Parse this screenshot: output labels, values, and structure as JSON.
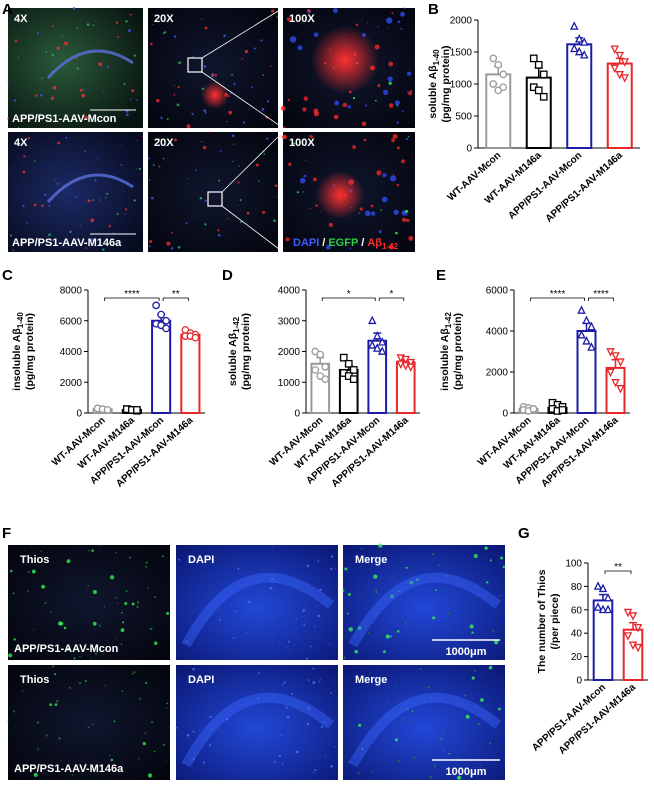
{
  "panel_a": {
    "label": "A",
    "rows": [
      {
        "mags": [
          "4X",
          "20X",
          "100X"
        ],
        "group": "APP/PS1-AAV-Mcon"
      },
      {
        "mags": [
          "4X",
          "20X",
          "100X"
        ],
        "group": "APP/PS1-AAV-M146a"
      }
    ],
    "legend": {
      "dapi": "DAPI",
      "sep1": "/",
      "egfp": "EGFP",
      "sep2": "/",
      "ab": "Aβ",
      "sub": "1-42"
    }
  },
  "panel_f": {
    "label": "F",
    "rows": [
      {
        "stains": [
          "Thios",
          "DAPI",
          "Merge"
        ],
        "group": "APP/PS1-AAV-Mcon",
        "scale": "1000μm"
      },
      {
        "stains": [
          "Thios",
          "DAPI",
          "Merge"
        ],
        "group": "APP/PS1-AAV-M146a",
        "scale": "1000μm"
      }
    ]
  },
  "chart_data": [
    {
      "type": "bar",
      "label": "B",
      "ylabel": {
        "text": "soluble Aβ",
        "sub": "1-40",
        "unit": "(pg/mg protein)"
      },
      "categories": [
        "WT-AAV-Mcon",
        "WT-AAV-M146a",
        "APP/PS1-AAV-Mcon",
        "APP/PS1-AAV-M146a"
      ],
      "values": [
        1150,
        1100,
        1620,
        1320
      ],
      "errors": [
        120,
        150,
        100,
        80
      ],
      "points": [
        [
          1400,
          1300,
          1150,
          1000,
          900,
          950
        ],
        [
          1400,
          1300,
          1150,
          950,
          900,
          800
        ],
        [
          1900,
          1700,
          1650,
          1550,
          1500,
          1450
        ],
        [
          1550,
          1450,
          1350,
          1250,
          1150,
          1100
        ]
      ],
      "colors": [
        "#9a9a9a",
        "#000000",
        "#1c1ca8",
        "#e8262a"
      ],
      "markers": [
        "circle",
        "square",
        "triangle",
        "triangle-down"
      ],
      "ylim": [
        0,
        2000
      ],
      "yticks": [
        0,
        500,
        1000,
        1500,
        2000
      ],
      "comparisons": []
    },
    {
      "type": "bar",
      "label": "C",
      "ylabel": {
        "text": "insoluble Aβ",
        "sub": "1-40",
        "unit": "(pg/mg protein)"
      },
      "categories": [
        "WT-AAV-Mcon",
        "WT-AAV-M146a",
        "APP/PS1-AAV-Mcon",
        "APP/PS1-AAV-M146a"
      ],
      "values": [
        250,
        200,
        6000,
        5100
      ],
      "errors": [
        50,
        50,
        400,
        150
      ],
      "points": [
        [
          300,
          250,
          200,
          300,
          250,
          200
        ],
        [
          250,
          200,
          150,
          250,
          200,
          200
        ],
        [
          7000,
          6400,
          6000,
          5800,
          5700,
          5500
        ],
        [
          5400,
          5200,
          5100,
          5000,
          5000,
          4900
        ]
      ],
      "colors": [
        "#9a9a9a",
        "#000000",
        "#1c1ca8",
        "#e8262a"
      ],
      "markers": [
        "circle",
        "square",
        "circle",
        "circle"
      ],
      "ylim": [
        0,
        8000
      ],
      "yticks": [
        0,
        2000,
        4000,
        6000,
        8000
      ],
      "comparisons": [
        {
          "groups": [
            "WT-AAV-Mcon",
            "APP/PS1-AAV-Mcon"
          ],
          "label": "****"
        },
        {
          "groups": [
            "APP/PS1-AAV-Mcon",
            "APP/PS1-AAV-M146a"
          ],
          "label": "**"
        }
      ]
    },
    {
      "type": "bar",
      "label": "D",
      "ylabel": {
        "text": "soluble Aβ",
        "sub": "1-42",
        "unit": "(pg/mg protein)"
      },
      "categories": [
        "WT-AAV-Mcon",
        "WT-AAV-M146a",
        "APP/PS1-AAV-Mcon",
        "APP/PS1-AAV-M146a"
      ],
      "values": [
        1600,
        1400,
        2350,
        1650
      ],
      "errors": [
        200,
        150,
        250,
        80
      ],
      "points": [
        [
          2000,
          1900,
          1500,
          1400,
          1200,
          1100
        ],
        [
          1800,
          1600,
          1400,
          1300,
          1200,
          1100
        ],
        [
          3000,
          2500,
          2300,
          2200,
          2100,
          2000
        ],
        [
          1800,
          1750,
          1650,
          1600,
          1550,
          1500
        ]
      ],
      "colors": [
        "#9a9a9a",
        "#000000",
        "#1c1ca8",
        "#e8262a"
      ],
      "markers": [
        "circle",
        "square",
        "triangle",
        "triangle-down"
      ],
      "ylim": [
        0,
        4000
      ],
      "yticks": [
        0,
        1000,
        2000,
        3000,
        4000
      ],
      "comparisons": [
        {
          "groups": [
            "WT-AAV-Mcon",
            "APP/PS1-AAV-Mcon"
          ],
          "label": "*"
        },
        {
          "groups": [
            "APP/PS1-AAV-Mcon",
            "APP/PS1-AAV-M146a"
          ],
          "label": "*"
        }
      ]
    },
    {
      "type": "bar",
      "label": "E",
      "ylabel": {
        "text": "insoluble Aβ",
        "sub": "1-42",
        "unit": "(pg/mg protein)"
      },
      "categories": [
        "WT-AAV-Mcon",
        "WT-AAV-M146a",
        "APP/PS1-AAV-Mcon",
        "APP/PS1-AAV-M146a"
      ],
      "values": [
        200,
        250,
        4000,
        2200
      ],
      "errors": [
        50,
        100,
        400,
        400
      ],
      "points": [
        [
          300,
          250,
          200,
          150,
          100,
          200
        ],
        [
          500,
          400,
          300,
          200,
          100,
          150
        ],
        [
          5000,
          4500,
          4200,
          3800,
          3500,
          3200
        ],
        [
          3000,
          2800,
          2500,
          2000,
          1500,
          1200
        ]
      ],
      "colors": [
        "#9a9a9a",
        "#000000",
        "#1c1ca8",
        "#e8262a"
      ],
      "markers": [
        "circle",
        "square",
        "triangle",
        "triangle-down"
      ],
      "ylim": [
        0,
        6000
      ],
      "yticks": [
        0,
        2000,
        4000,
        6000
      ],
      "comparisons": [
        {
          "groups": [
            "WT-AAV-Mcon",
            "APP/PS1-AAV-Mcon"
          ],
          "label": "****"
        },
        {
          "groups": [
            "APP/PS1-AAV-Mcon",
            "APP/PS1-AAV-M146a"
          ],
          "label": "****"
        }
      ]
    },
    {
      "type": "bar",
      "label": "G",
      "ylabel": {
        "text": "The number of Thios",
        "sub": null,
        "unit": "(/per piece)"
      },
      "categories": [
        "APP/PS1-AAV-Mcon",
        "APP/PS1-AAV-M146a"
      ],
      "values": [
        68,
        43
      ],
      "errors": [
        5,
        6
      ],
      "points": [
        [
          80,
          78,
          70,
          62,
          60,
          60
        ],
        [
          58,
          55,
          45,
          38,
          30,
          28
        ]
      ],
      "colors": [
        "#1c1ca8",
        "#e8262a"
      ],
      "markers": [
        "triangle",
        "triangle-down"
      ],
      "ylim": [
        0,
        100
      ],
      "yticks": [
        0,
        20,
        40,
        60,
        80,
        100
      ],
      "comparisons": [
        {
          "groups": [
            "APP/PS1-AAV-Mcon",
            "APP/PS1-AAV-M146a"
          ],
          "label": "**"
        }
      ]
    }
  ]
}
